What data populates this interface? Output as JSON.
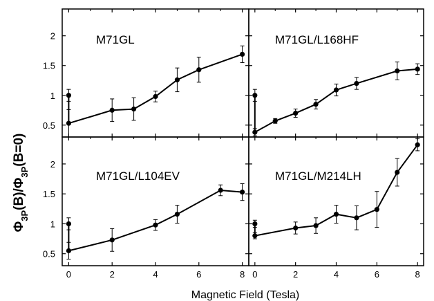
{
  "chart_data": {
    "type": "line",
    "xlabel": "Magnetic Field (Tesla)",
    "ylabel": {
      "phi1": "Φ",
      "sub1": "3P",
      "arg1": "(B)/",
      "phi2": "Φ",
      "sub2": "3P",
      "arg2": "(B=0)"
    },
    "xlim": [
      -0.3,
      8.3
    ],
    "ylim": [
      0.3,
      2.45
    ],
    "xticks": [
      0,
      2,
      4,
      6,
      8
    ],
    "yticks": [
      0.5,
      1,
      1.5,
      2
    ],
    "ytick_labels": [
      "0.5",
      "1",
      "1.5",
      "2"
    ],
    "grid": false,
    "panels": [
      {
        "name": "M71GL",
        "points": [
          {
            "x": 0,
            "y": 1.0,
            "err": 0.1
          },
          {
            "x": 0,
            "y": 0.53,
            "err": 0.23
          },
          {
            "x": 2,
            "y": 0.75,
            "err": 0.19
          },
          {
            "x": 3,
            "y": 0.77,
            "err": 0.19
          },
          {
            "x": 4,
            "y": 0.98,
            "err": 0.09
          },
          {
            "x": 5,
            "y": 1.26,
            "err": 0.2
          },
          {
            "x": 6,
            "y": 1.43,
            "err": 0.21
          },
          {
            "x": 8,
            "y": 1.69,
            "err": 0.14
          }
        ]
      },
      {
        "name": "M71GL/L168HF",
        "points": [
          {
            "x": 0,
            "y": 1.0,
            "err": 0.1
          },
          {
            "x": 0,
            "y": 0.38,
            "err": 0.06
          },
          {
            "x": 1,
            "y": 0.57,
            "err": 0.04
          },
          {
            "x": 2,
            "y": 0.7,
            "err": 0.07
          },
          {
            "x": 3,
            "y": 0.85,
            "err": 0.08
          },
          {
            "x": 4,
            "y": 1.09,
            "err": 0.1
          },
          {
            "x": 5,
            "y": 1.2,
            "err": 0.1
          },
          {
            "x": 7,
            "y": 1.41,
            "err": 0.15
          },
          {
            "x": 8,
            "y": 1.44,
            "err": 0.09
          }
        ]
      },
      {
        "name": "M71GL/L104EV",
        "points": [
          {
            "x": 0,
            "y": 1.0,
            "err": 0.1
          },
          {
            "x": 0,
            "y": 0.55,
            "err": 0.14
          },
          {
            "x": 2,
            "y": 0.73,
            "err": 0.19
          },
          {
            "x": 4,
            "y": 0.98,
            "err": 0.09
          },
          {
            "x": 5,
            "y": 1.16,
            "err": 0.15
          },
          {
            "x": 7,
            "y": 1.56,
            "err": 0.09
          },
          {
            "x": 8,
            "y": 1.53,
            "err": 0.14
          }
        ]
      },
      {
        "name": "M71GL/M214LH",
        "points": [
          {
            "x": 0,
            "y": 1.0,
            "err": 0.06
          },
          {
            "x": 0,
            "y": 0.8,
            "err": 0.05
          },
          {
            "x": 2,
            "y": 0.93,
            "err": 0.1
          },
          {
            "x": 3,
            "y": 0.97,
            "err": 0.13
          },
          {
            "x": 4,
            "y": 1.16,
            "err": 0.15
          },
          {
            "x": 5,
            "y": 1.1,
            "err": 0.2
          },
          {
            "x": 6,
            "y": 1.24,
            "err": 0.3
          },
          {
            "x": 7,
            "y": 1.86,
            "err": 0.23
          },
          {
            "x": 8,
            "y": 2.32,
            "err": 0.1
          }
        ]
      }
    ]
  }
}
